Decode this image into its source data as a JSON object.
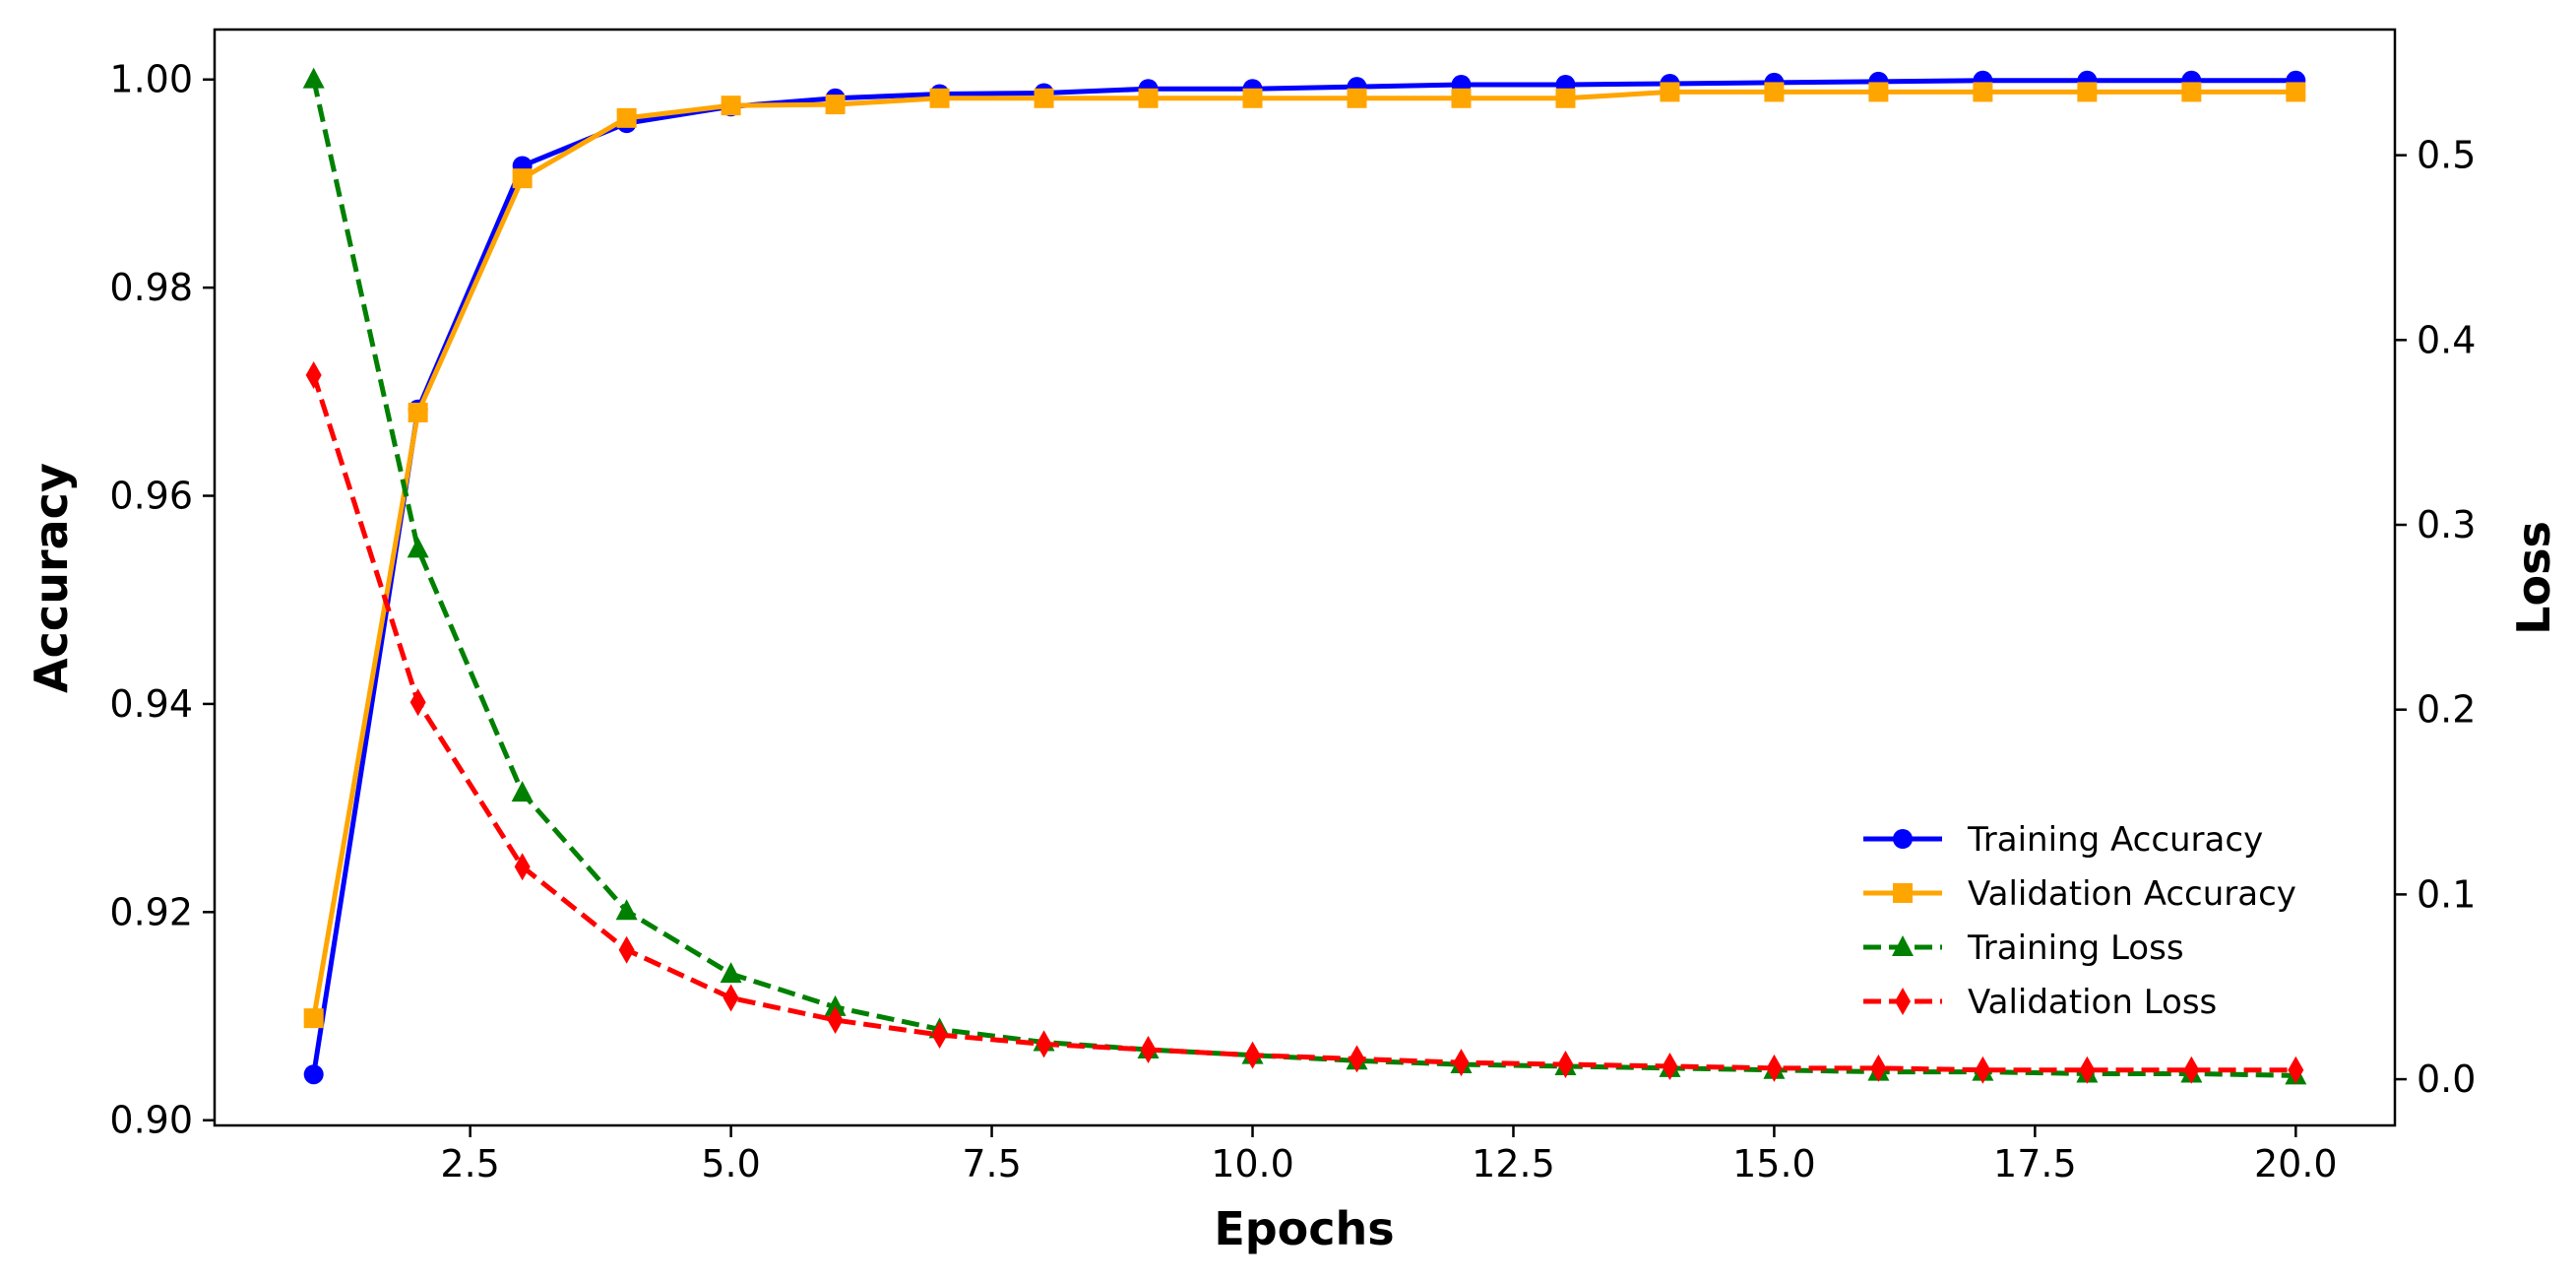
{
  "chart_data": {
    "type": "line",
    "xlabel": "Epochs",
    "ylabel_left": "Accuracy",
    "ylabel_right": "Loss",
    "xlim": [
      0.05,
      20.95
    ],
    "ylim_left": [
      0.8995,
      1.0048
    ],
    "ylim_right": [
      -0.025,
      0.568
    ],
    "x_ticks": [
      2.5,
      5.0,
      7.5,
      10.0,
      12.5,
      15.0,
      17.5,
      20.0
    ],
    "x_tick_labels": [
      "2.5",
      "5.0",
      "7.5",
      "10.0",
      "12.5",
      "15.0",
      "17.5",
      "20.0"
    ],
    "y_left_ticks": [
      0.9,
      0.92,
      0.94,
      0.96,
      0.98,
      1.0
    ],
    "y_left_tick_labels": [
      "0.90",
      "0.92",
      "0.94",
      "0.96",
      "0.98",
      "1.00"
    ],
    "y_right_ticks": [
      0.0,
      0.1,
      0.2,
      0.3,
      0.4,
      0.5
    ],
    "y_right_tick_labels": [
      "0.0",
      "0.1",
      "0.2",
      "0.3",
      "0.4",
      "0.5"
    ],
    "grid": false,
    "legend_position": "lower-right",
    "x": [
      1,
      2,
      3,
      4,
      5,
      6,
      7,
      8,
      9,
      10,
      11,
      12,
      13,
      14,
      15,
      16,
      17,
      18,
      19,
      20
    ],
    "series": [
      {
        "name": "Training Accuracy",
        "axis": "left",
        "color": "#0000ff",
        "line_style": "solid",
        "marker": "circle",
        "values": [
          0.9044,
          0.9683,
          0.9917,
          0.9958,
          0.9974,
          0.9982,
          0.9986,
          0.9987,
          0.9991,
          0.9991,
          0.9993,
          0.9995,
          0.9995,
          0.9996,
          0.9997,
          0.9998,
          0.9999,
          0.9999,
          0.9999,
          0.9999
        ]
      },
      {
        "name": "Validation Accuracy",
        "axis": "left",
        "color": "#ffa500",
        "line_style": "solid",
        "marker": "square",
        "values": [
          0.9098,
          0.968,
          0.9905,
          0.9963,
          0.9975,
          0.9976,
          0.9982,
          0.9982,
          0.9982,
          0.9982,
          0.9982,
          0.9982,
          0.9982,
          0.9988,
          0.9988,
          0.9988,
          0.9988,
          0.9988,
          0.9988,
          0.9988
        ]
      },
      {
        "name": "Training Loss",
        "axis": "right",
        "color": "#008000",
        "line_style": "dashed",
        "marker": "triangle",
        "values": [
          0.541,
          0.287,
          0.155,
          0.091,
          0.057,
          0.039,
          0.027,
          0.02,
          0.016,
          0.013,
          0.01,
          0.008,
          0.007,
          0.006,
          0.005,
          0.004,
          0.004,
          0.003,
          0.003,
          0.002
        ]
      },
      {
        "name": "Validation Loss",
        "axis": "right",
        "color": "#ff0000",
        "line_style": "dashed",
        "marker": "diamond",
        "values": [
          0.381,
          0.204,
          0.115,
          0.07,
          0.044,
          0.032,
          0.024,
          0.019,
          0.016,
          0.013,
          0.011,
          0.009,
          0.008,
          0.007,
          0.006,
          0.006,
          0.005,
          0.005,
          0.005,
          0.005
        ]
      }
    ]
  }
}
